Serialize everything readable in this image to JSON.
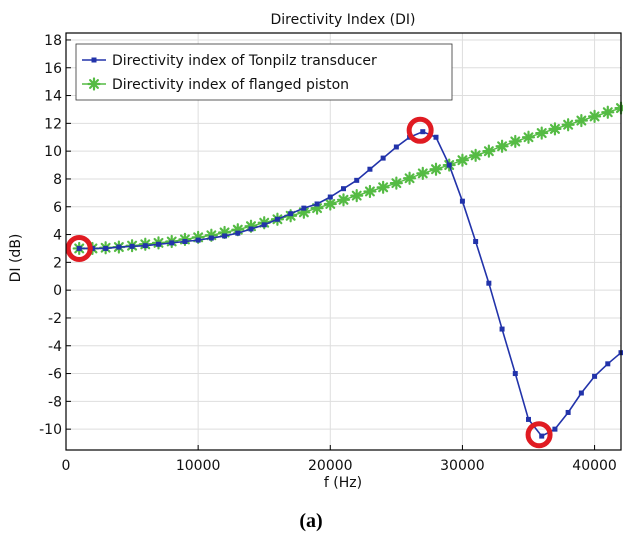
{
  "chart_data": {
    "type": "line",
    "title": "Directivity Index (DI)",
    "xlabel": "f (Hz)",
    "ylabel": "DI (dB)",
    "xlim": [
      0,
      42000
    ],
    "ylim": [
      -11.5,
      18.5
    ],
    "xticks": [
      0,
      10000,
      20000,
      30000,
      40000
    ],
    "yticks": [
      -10,
      -8,
      -6,
      -4,
      -2,
      0,
      2,
      4,
      6,
      8,
      10,
      12,
      14,
      16,
      18
    ],
    "grid": true,
    "legend_position": "top-left",
    "caption": "(a)",
    "series": [
      {
        "name": "Directivity index of Tonpilz transducer",
        "color": "#2233aa",
        "marker": "square",
        "x": [
          1000,
          2000,
          3000,
          4000,
          5000,
          6000,
          7000,
          8000,
          9000,
          10000,
          11000,
          12000,
          13000,
          14000,
          15000,
          16000,
          17000,
          18000,
          19000,
          20000,
          21000,
          22000,
          23000,
          24000,
          25000,
          26000,
          27000,
          28000,
          29000,
          30000,
          31000,
          32000,
          33000,
          34000,
          35000,
          36000,
          37000,
          38000,
          39000,
          40000,
          41000,
          42000
        ],
        "y": [
          3.0,
          3.0,
          3.0,
          3.1,
          3.15,
          3.2,
          3.3,
          3.4,
          3.5,
          3.6,
          3.75,
          3.9,
          4.1,
          4.4,
          4.7,
          5.1,
          5.5,
          5.9,
          6.2,
          6.7,
          7.3,
          7.9,
          8.7,
          9.5,
          10.3,
          11.0,
          11.4,
          11.0,
          9.0,
          6.4,
          3.5,
          0.5,
          -2.8,
          -6.0,
          -9.3,
          -10.5,
          -10.0,
          -8.8,
          -7.4,
          -6.2,
          -5.3,
          -4.5
        ]
      },
      {
        "name": "Directivity index of flanged piston",
        "color": "#55bb44",
        "marker": "star",
        "x": [
          1000,
          2000,
          3000,
          4000,
          5000,
          6000,
          7000,
          8000,
          9000,
          10000,
          11000,
          12000,
          13000,
          14000,
          15000,
          16000,
          17000,
          18000,
          19000,
          20000,
          21000,
          22000,
          23000,
          24000,
          25000,
          26000,
          27000,
          28000,
          29000,
          30000,
          31000,
          32000,
          33000,
          34000,
          35000,
          36000,
          37000,
          38000,
          39000,
          40000,
          41000,
          42000
        ],
        "y": [
          3.0,
          3.0,
          3.05,
          3.1,
          3.2,
          3.3,
          3.4,
          3.5,
          3.65,
          3.8,
          3.95,
          4.15,
          4.35,
          4.6,
          4.85,
          5.1,
          5.35,
          5.6,
          5.9,
          6.2,
          6.5,
          6.8,
          7.1,
          7.4,
          7.7,
          8.05,
          8.4,
          8.7,
          9.0,
          9.35,
          9.7,
          10.0,
          10.35,
          10.7,
          11.0,
          11.3,
          11.6,
          11.9,
          12.2,
          12.5,
          12.8,
          13.1
        ]
      }
    ],
    "highlights": [
      {
        "x": 1000,
        "y": 3.0,
        "color": "#e01b22"
      },
      {
        "x": 26800,
        "y": 11.5,
        "color": "#e01b22"
      },
      {
        "x": 35800,
        "y": -10.4,
        "color": "#e01b22"
      }
    ]
  }
}
